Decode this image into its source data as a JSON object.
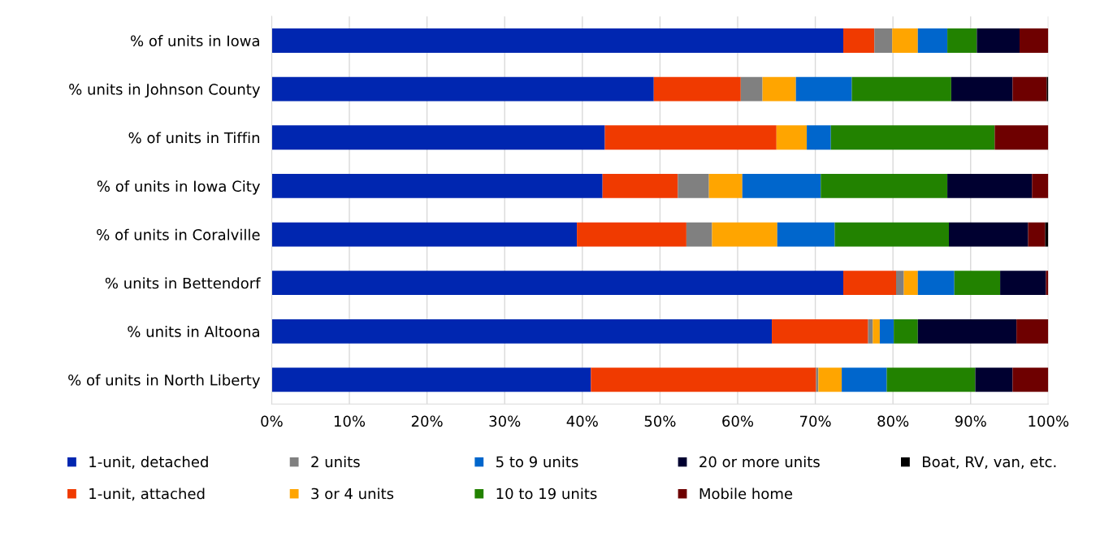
{
  "chart_data": {
    "type": "bar",
    "orientation": "horizontal",
    "stacked": true,
    "categories": [
      "% of units in Iowa",
      "% units in Johnson County",
      "% of units in Tiffin",
      "% of units in Iowa City",
      "% of units in Coralville",
      "% units in Bettendorf",
      "% units in Altoona",
      "% of units in North Liberty"
    ],
    "series": [
      {
        "name": "1-unit, detached",
        "color": "#0026b0",
        "values": [
          73.6,
          49.2,
          42.9,
          42.6,
          39.3,
          73.6,
          64.4,
          41.1
        ]
      },
      {
        "name": "1-unit, attached",
        "color": "#f03a00",
        "values": [
          4.0,
          11.2,
          22.1,
          9.7,
          14.1,
          6.8,
          12.4,
          29.0
        ]
      },
      {
        "name": "2 units",
        "color": "#808080",
        "values": [
          2.3,
          2.8,
          0,
          4.0,
          3.3,
          1.0,
          0.6,
          0.3
        ]
      },
      {
        "name": "3 or 4 units",
        "color": "#ffa500",
        "values": [
          3.3,
          4.3,
          3.9,
          4.3,
          8.4,
          1.8,
          0.9,
          3.0
        ]
      },
      {
        "name": "5 to 9 units",
        "color": "#0066cc",
        "values": [
          3.8,
          7.2,
          3.1,
          10.1,
          7.4,
          4.7,
          1.8,
          5.8
        ]
      },
      {
        "name": "10 to 19 units",
        "color": "#228200",
        "values": [
          3.8,
          12.8,
          21.1,
          16.3,
          14.7,
          5.9,
          3.1,
          11.4
        ]
      },
      {
        "name": "20 or more units",
        "color": "#000030",
        "values": [
          5.5,
          7.9,
          0,
          10.9,
          10.2,
          5.9,
          12.7,
          4.8
        ]
      },
      {
        "name": "Mobile home",
        "color": "#6e0000",
        "values": [
          3.7,
          4.4,
          6.9,
          2.1,
          2.2,
          0.3,
          4.1,
          4.6
        ]
      },
      {
        "name": "Boat, RV, van, etc.",
        "color": "#000000",
        "values": [
          0,
          0.2,
          0,
          0,
          0.4,
          0,
          0,
          0
        ]
      }
    ],
    "xlim": [
      0,
      100
    ],
    "xticks": [
      {
        "value": 0,
        "label": "0%"
      },
      {
        "value": 10,
        "label": "10%"
      },
      {
        "value": 20,
        "label": "20%"
      },
      {
        "value": 30,
        "label": "30%"
      },
      {
        "value": 40,
        "label": "40%"
      },
      {
        "value": 50,
        "label": "50%"
      },
      {
        "value": 60,
        "label": "60%"
      },
      {
        "value": 70,
        "label": "70%"
      },
      {
        "value": 80,
        "label": "80%"
      },
      {
        "value": 90,
        "label": "90%"
      },
      {
        "value": 100,
        "label": "100%"
      }
    ],
    "grid": "x",
    "legend": "bottom"
  }
}
